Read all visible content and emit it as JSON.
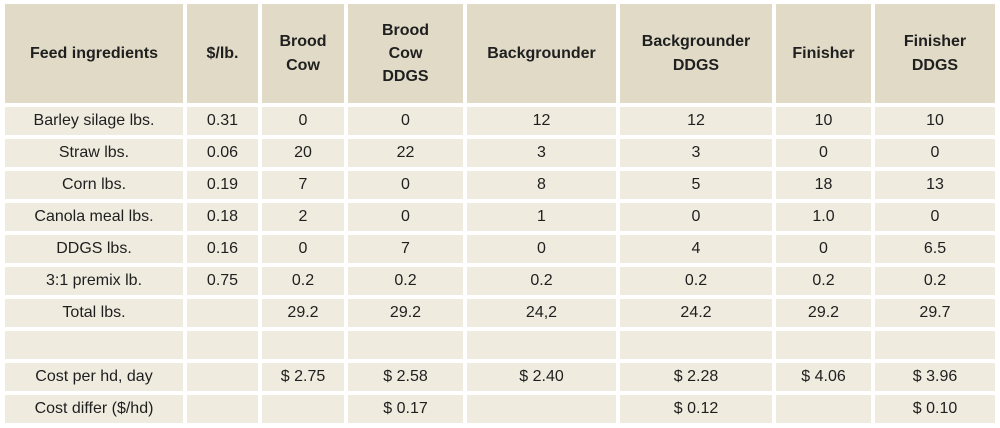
{
  "chart_data": {
    "type": "table",
    "columns": [
      "Feed ingredients",
      "$/lb.",
      "Brood\nCow",
      "Brood\nCow\nDDGS",
      "Backgrounder",
      "Backgrounder\nDDGS",
      "Finisher",
      "Finisher\nDDGS"
    ],
    "rows": [
      [
        "Barley silage lbs.",
        "0.31",
        "0",
        "0",
        "12",
        "12",
        "10",
        "10"
      ],
      [
        "Straw lbs.",
        "0.06",
        "20",
        "22",
        "3",
        "3",
        "0",
        "0"
      ],
      [
        "Corn lbs.",
        "0.19",
        "7",
        "0",
        "8",
        "5",
        "18",
        "13"
      ],
      [
        "Canola meal lbs.",
        "0.18",
        "2",
        "0",
        "1",
        "0",
        "1.0",
        "0"
      ],
      [
        "DDGS lbs.",
        "0.16",
        "0",
        "7",
        "0",
        "4",
        "0",
        "6.5"
      ],
      [
        "3:1 premix lb.",
        "0.75",
        "0.2",
        "0.2",
        "0.2",
        "0.2",
        "0.2",
        "0.2"
      ],
      [
        "Total lbs.",
        "",
        "29.2",
        "29.2",
        "24,2",
        "24.2",
        "29.2",
        "29.7"
      ],
      [
        "",
        "",
        "",
        "",
        "",
        "",
        "",
        ""
      ],
      [
        "Cost per hd, day",
        "",
        "$ 2.75",
        "$ 2.58",
        "$ 2.40",
        "$ 2.28",
        "$ 4.06",
        "$ 3.96"
      ],
      [
        "Cost differ ($/hd)",
        "",
        "",
        "$ 0.17",
        "",
        "$ 0.12",
        "",
        "$ 0.10"
      ]
    ]
  },
  "colors": {
    "header_bg": "#e0dac7",
    "row_bg": "#f0ebdf",
    "gutter_bg": "#ffffff",
    "text": "#1f1f1f"
  }
}
